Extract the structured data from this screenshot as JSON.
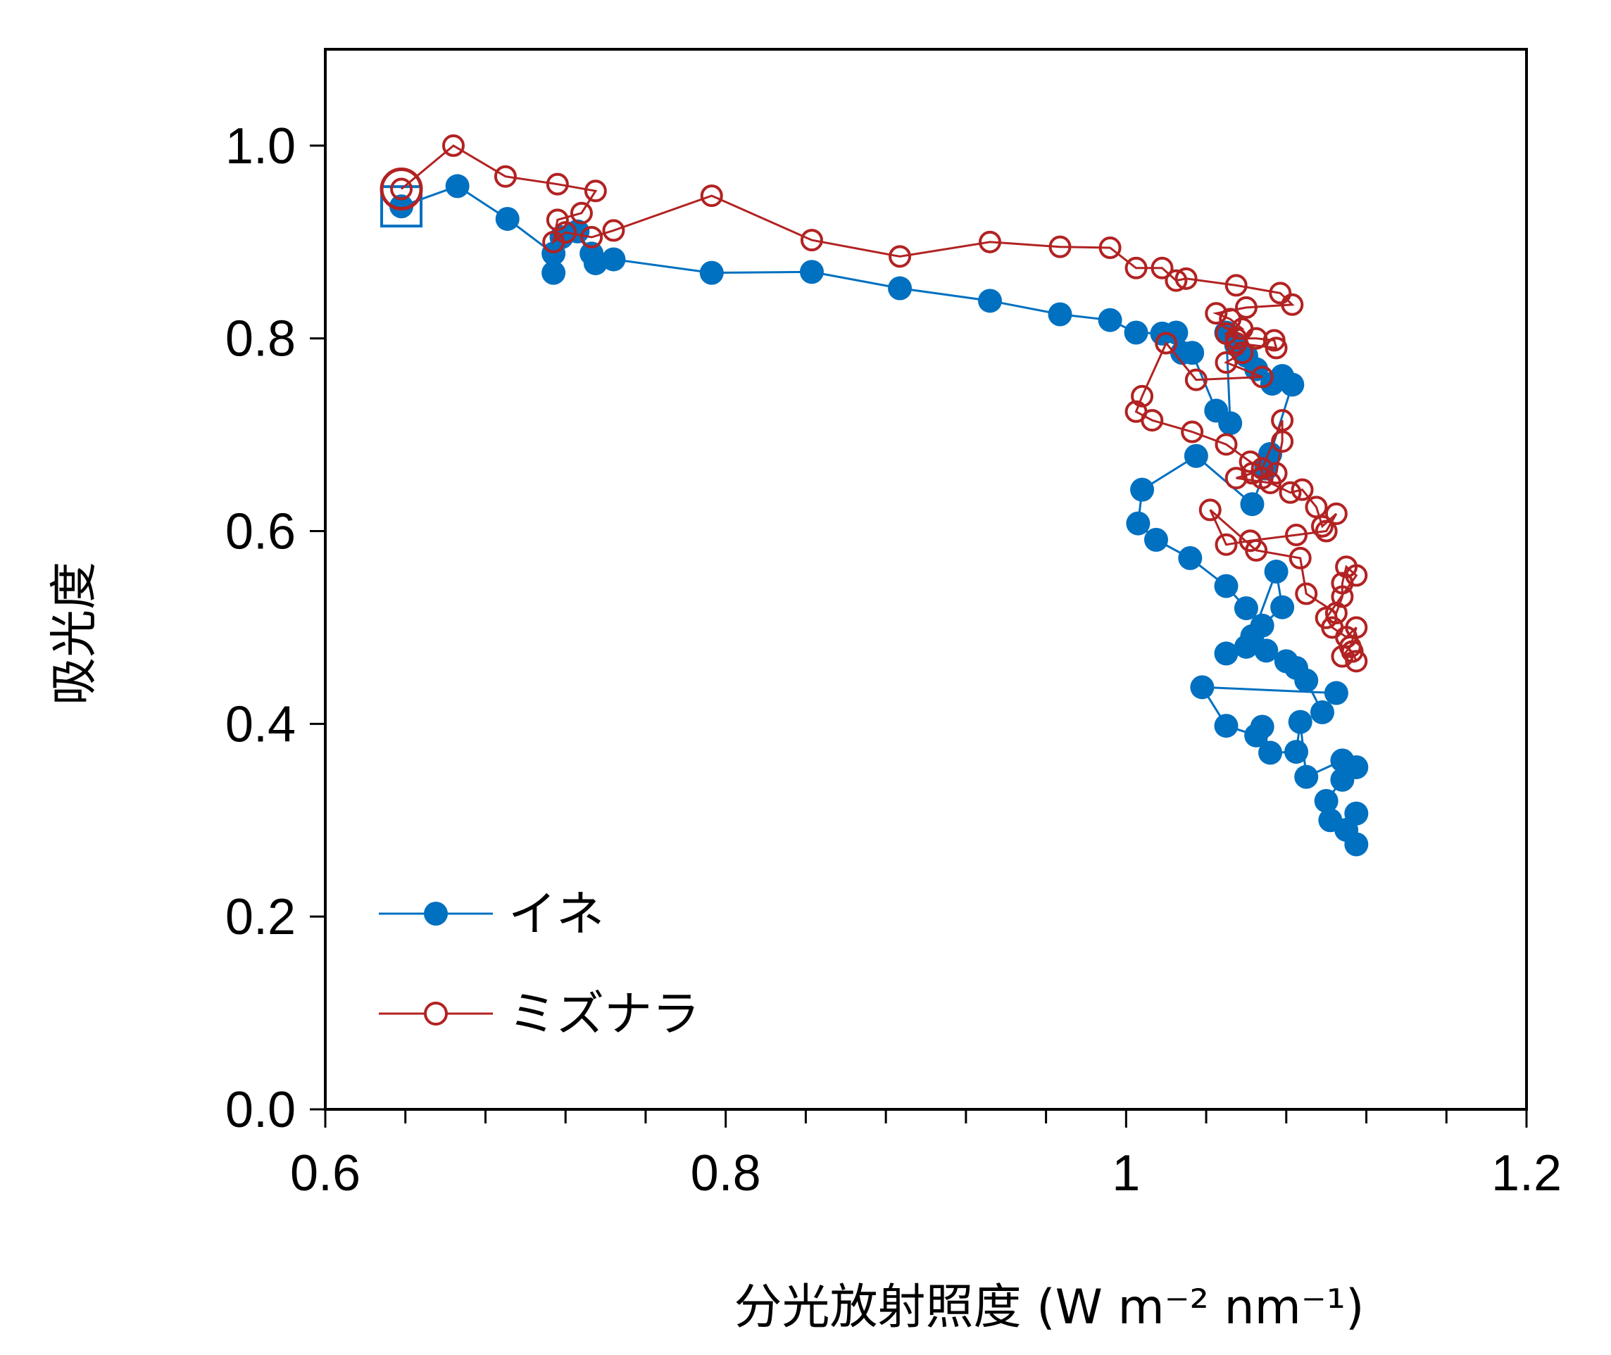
{
  "chart_data": {
    "type": "scatter",
    "xlabel": "分光放射照度 (W m⁻² nm⁻¹)",
    "ylabel": "吸光度",
    "xlim": [
      0.6,
      1.2
    ],
    "ylim": [
      0.0,
      1.1
    ],
    "xticks": [
      "0.6",
      "0.8",
      "1",
      "1.2"
    ],
    "yticks": [
      "0.0",
      "0.2",
      "0.4",
      "0.6",
      "0.8",
      "1.0"
    ],
    "grid": false,
    "legend_position": "bottom-left",
    "series": [
      {
        "name": "イネ",
        "color": "#0070C0",
        "marker": "filled-circle",
        "start_marker": "square",
        "points": [
          [
            0.638,
            0.937
          ],
          [
            0.666,
            0.958
          ],
          [
            0.691,
            0.924
          ],
          [
            0.714,
            0.888
          ],
          [
            0.714,
            0.868
          ],
          [
            0.718,
            0.905
          ],
          [
            0.726,
            0.911
          ],
          [
            0.733,
            0.888
          ],
          [
            0.735,
            0.878
          ],
          [
            0.744,
            0.882
          ],
          [
            0.793,
            0.868
          ],
          [
            0.843,
            0.869
          ],
          [
            0.887,
            0.852
          ],
          [
            0.932,
            0.839
          ],
          [
            0.967,
            0.825
          ],
          [
            0.992,
            0.819
          ],
          [
            1.005,
            0.806
          ],
          [
            1.018,
            0.805
          ],
          [
            1.025,
            0.806
          ],
          [
            1.028,
            0.785
          ],
          [
            1.033,
            0.785
          ],
          [
            1.045,
            0.725
          ],
          [
            1.052,
            0.712
          ],
          [
            1.05,
            0.806
          ],
          [
            1.055,
            0.793
          ],
          [
            1.06,
            0.782
          ],
          [
            1.065,
            0.768
          ],
          [
            1.073,
            0.753
          ],
          [
            1.078,
            0.761
          ],
          [
            1.083,
            0.752
          ],
          [
            1.072,
            0.68
          ],
          [
            1.07,
            0.665
          ],
          [
            1.063,
            0.628
          ],
          [
            1.035,
            0.678
          ],
          [
            1.008,
            0.643
          ],
          [
            1.006,
            0.608
          ],
          [
            1.015,
            0.591
          ],
          [
            1.032,
            0.572
          ],
          [
            1.05,
            0.543
          ],
          [
            1.06,
            0.52
          ],
          [
            1.068,
            0.502
          ],
          [
            1.078,
            0.521
          ],
          [
            1.075,
            0.558
          ],
          [
            1.063,
            0.491
          ],
          [
            1.06,
            0.48
          ],
          [
            1.05,
            0.473
          ],
          [
            1.07,
            0.476
          ],
          [
            1.08,
            0.465
          ],
          [
            1.085,
            0.458
          ],
          [
            1.09,
            0.445
          ],
          [
            1.098,
            0.412
          ],
          [
            1.105,
            0.432
          ],
          [
            1.038,
            0.438
          ],
          [
            1.05,
            0.398
          ],
          [
            1.065,
            0.388
          ],
          [
            1.068,
            0.397
          ],
          [
            1.072,
            0.37
          ],
          [
            1.085,
            0.371
          ],
          [
            1.087,
            0.402
          ],
          [
            1.09,
            0.345
          ],
          [
            1.108,
            0.362
          ],
          [
            1.115,
            0.355
          ],
          [
            1.108,
            0.342
          ],
          [
            1.1,
            0.32
          ],
          [
            1.102,
            0.3
          ],
          [
            1.11,
            0.29
          ],
          [
            1.115,
            0.307
          ],
          [
            1.115,
            0.275
          ]
        ]
      },
      {
        "name": "ミズナラ",
        "color": "#B22222",
        "marker": "open-circle",
        "start_marker": "large-open-circle",
        "points": [
          [
            0.638,
            0.955
          ],
          [
            0.664,
            1.0
          ],
          [
            0.69,
            0.968
          ],
          [
            0.716,
            0.96
          ],
          [
            0.735,
            0.953
          ],
          [
            0.728,
            0.93
          ],
          [
            0.716,
            0.923
          ],
          [
            0.714,
            0.9
          ],
          [
            0.72,
            0.91
          ],
          [
            0.733,
            0.905
          ],
          [
            0.744,
            0.912
          ],
          [
            0.793,
            0.948
          ],
          [
            0.843,
            0.902
          ],
          [
            0.887,
            0.885
          ],
          [
            0.932,
            0.9
          ],
          [
            0.967,
            0.895
          ],
          [
            0.992,
            0.894
          ],
          [
            1.005,
            0.873
          ],
          [
            1.018,
            0.873
          ],
          [
            1.025,
            0.86
          ],
          [
            1.03,
            0.862
          ],
          [
            1.055,
            0.855
          ],
          [
            1.077,
            0.847
          ],
          [
            1.083,
            0.835
          ],
          [
            1.06,
            0.832
          ],
          [
            1.045,
            0.826
          ],
          [
            1.052,
            0.82
          ],
          [
            1.058,
            0.81
          ],
          [
            1.05,
            0.805
          ],
          [
            1.055,
            0.8
          ],
          [
            1.065,
            0.8
          ],
          [
            1.074,
            0.798
          ],
          [
            1.075,
            0.79
          ],
          [
            1.055,
            0.795
          ],
          [
            1.058,
            0.785
          ],
          [
            1.05,
            0.775
          ],
          [
            1.068,
            0.76
          ],
          [
            1.035,
            0.757
          ],
          [
            1.02,
            0.795
          ],
          [
            1.008,
            0.74
          ],
          [
            1.005,
            0.724
          ],
          [
            1.013,
            0.715
          ],
          [
            1.033,
            0.703
          ],
          [
            1.05,
            0.69
          ],
          [
            1.062,
            0.672
          ],
          [
            1.068,
            0.665
          ],
          [
            1.078,
            0.715
          ],
          [
            1.078,
            0.693
          ],
          [
            1.075,
            0.66
          ],
          [
            1.068,
            0.655
          ],
          [
            1.063,
            0.66
          ],
          [
            1.055,
            0.655
          ],
          [
            1.072,
            0.65
          ],
          [
            1.082,
            0.64
          ],
          [
            1.088,
            0.643
          ],
          [
            1.095,
            0.625
          ],
          [
            1.098,
            0.605
          ],
          [
            1.105,
            0.618
          ],
          [
            1.1,
            0.6
          ],
          [
            1.085,
            0.596
          ],
          [
            1.062,
            0.59
          ],
          [
            1.05,
            0.586
          ],
          [
            1.042,
            0.622
          ],
          [
            1.065,
            0.58
          ],
          [
            1.087,
            0.572
          ],
          [
            1.09,
            0.535
          ],
          [
            1.105,
            0.515
          ],
          [
            1.108,
            0.532
          ],
          [
            1.108,
            0.546
          ],
          [
            1.11,
            0.563
          ],
          [
            1.115,
            0.554
          ],
          [
            1.1,
            0.51
          ],
          [
            1.103,
            0.5
          ],
          [
            1.11,
            0.49
          ],
          [
            1.115,
            0.5
          ],
          [
            1.112,
            0.48
          ],
          [
            1.108,
            0.47
          ],
          [
            1.113,
            0.475
          ],
          [
            1.115,
            0.465
          ]
        ]
      }
    ]
  }
}
